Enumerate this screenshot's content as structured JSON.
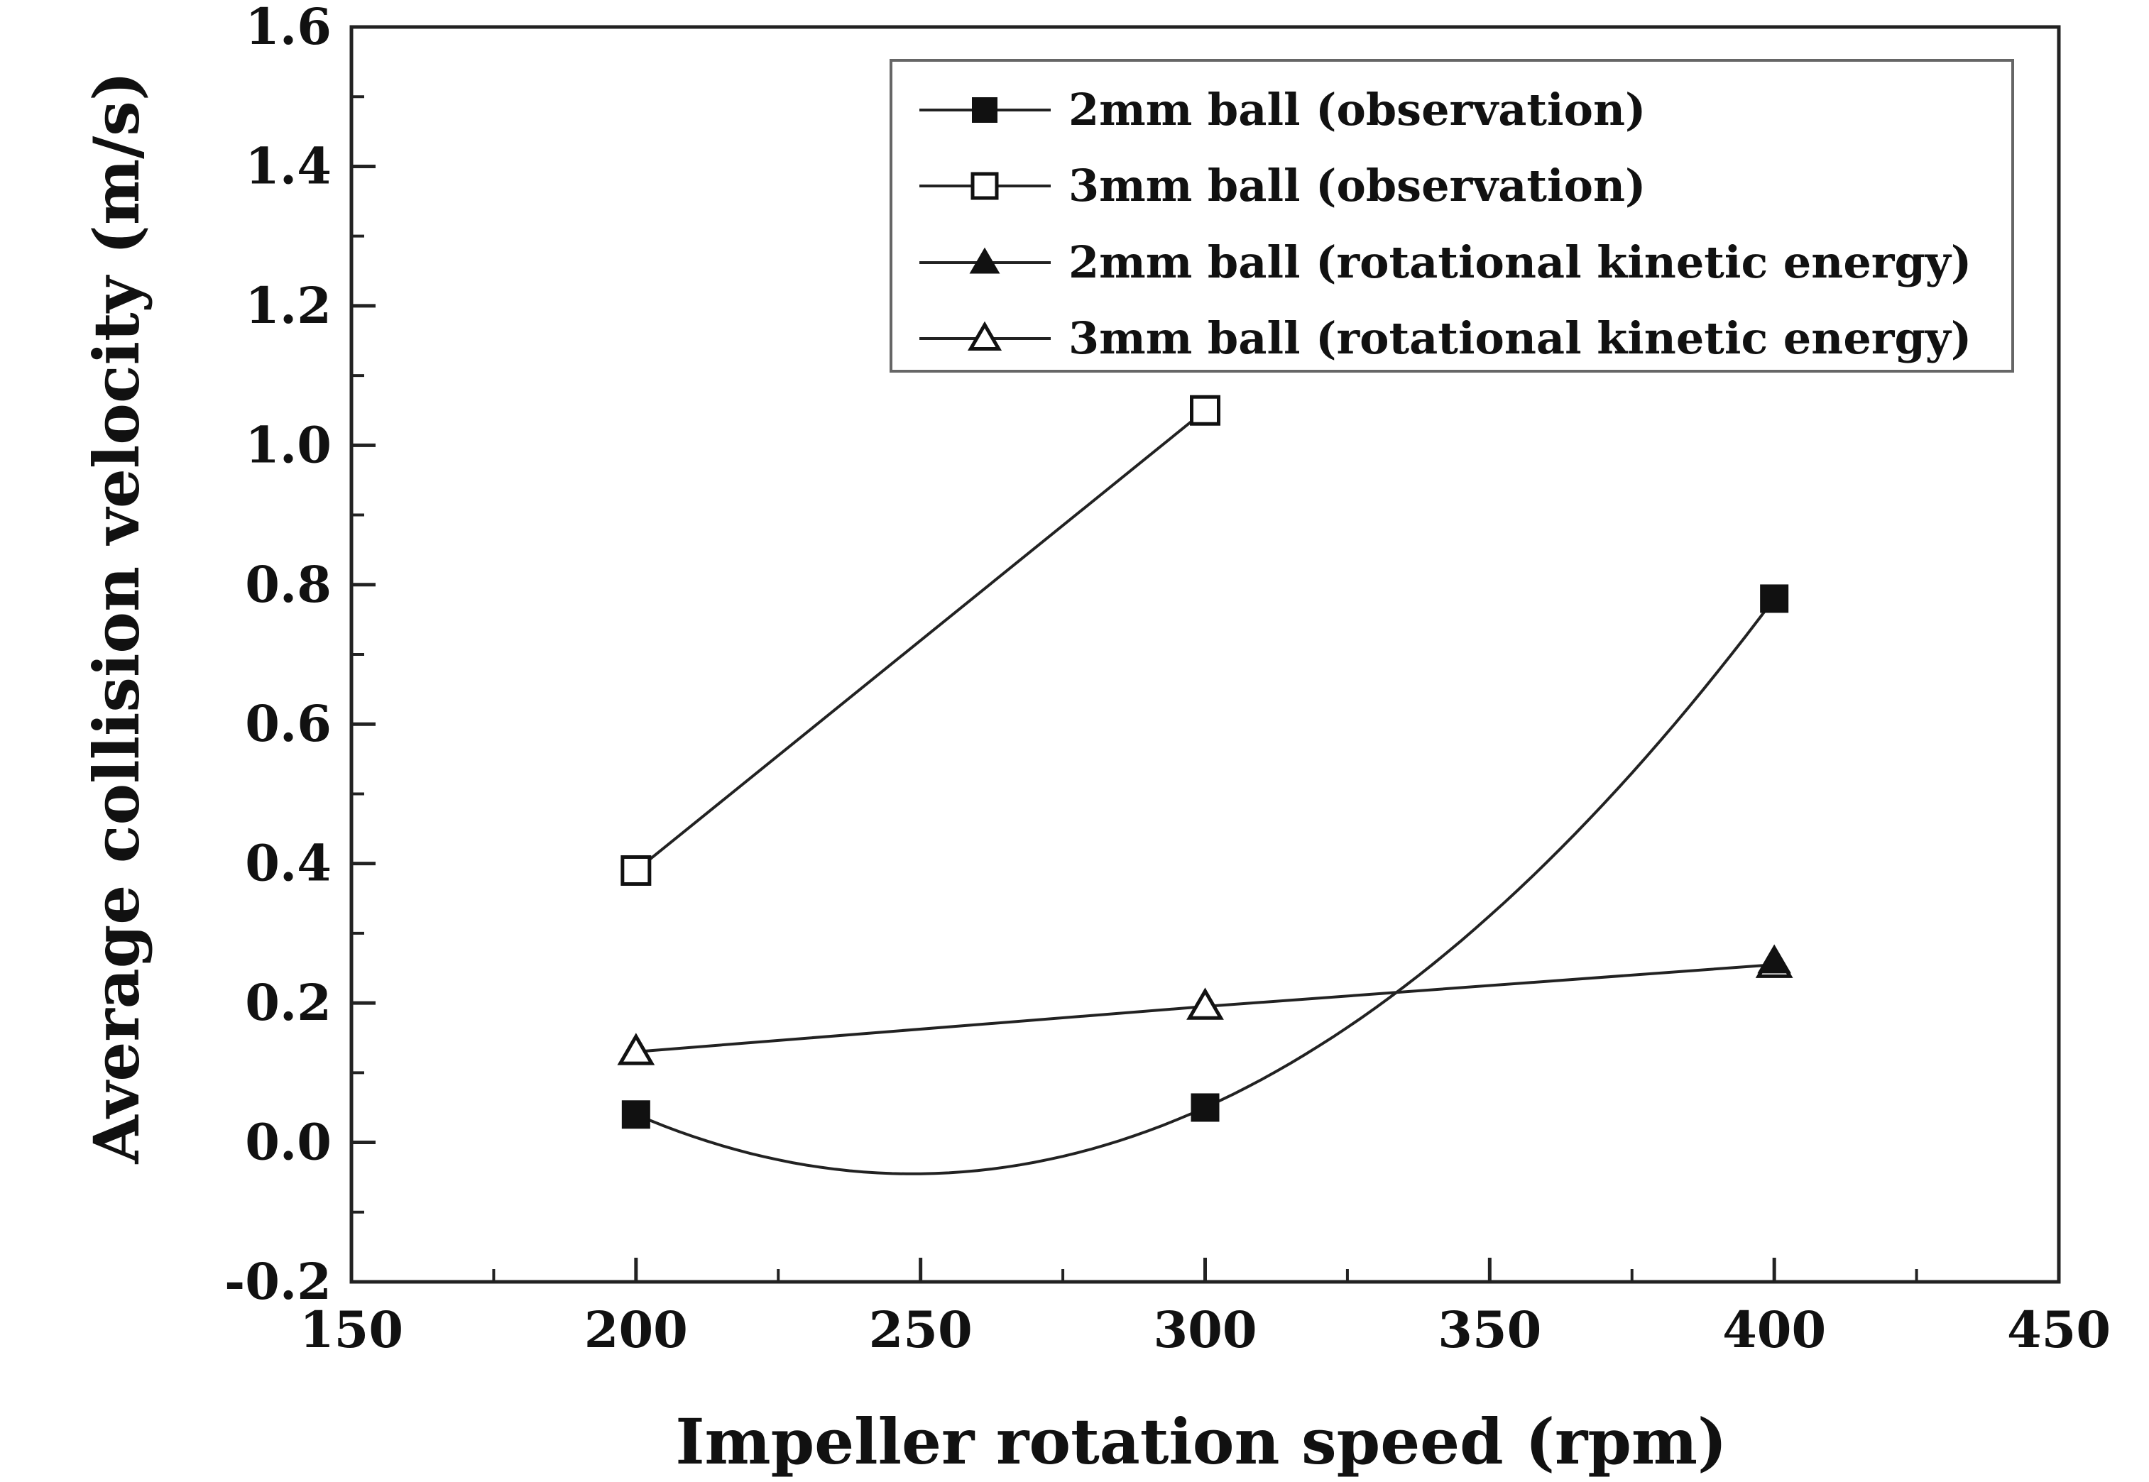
{
  "chart_data": {
    "type": "line",
    "title": "",
    "xlabel": "Impeller rotation speed (rpm)",
    "ylabel": "Average collision velocity (m/s)",
    "xlim": [
      150,
      450
    ],
    "ylim": [
      -0.2,
      1.6
    ],
    "xticks": [
      150,
      200,
      250,
      300,
      350,
      400,
      450
    ],
    "xtick_labels": [
      "150",
      "200",
      "250",
      "300",
      "350",
      "400",
      "450"
    ],
    "yticks": [
      -0.2,
      0.0,
      0.2,
      0.4,
      0.6,
      0.8,
      1.0,
      1.2,
      1.4,
      1.6
    ],
    "ytick_labels": [
      "-0.2",
      "0.0",
      "0.2",
      "0.4",
      "0.6",
      "0.8",
      "1.0",
      "1.2",
      "1.4",
      "1.6"
    ],
    "grid": false,
    "legend_position": "top-right",
    "series": [
      {
        "name": "2mm ball (observation)",
        "marker": "square-filled",
        "line": "smooth",
        "x": [
          200,
          300,
          400
        ],
        "y": [
          0.04,
          0.05,
          0.78
        ]
      },
      {
        "name": "3mm ball (observation)",
        "marker": "square-open",
        "line": "straight",
        "x": [
          200,
          300
        ],
        "y": [
          0.39,
          1.05
        ]
      },
      {
        "name": "2mm ball (rotational kinetic energy)",
        "marker": "triangle-filled",
        "line": "straight",
        "x": [
          400
        ],
        "y": [
          0.26
        ]
      },
      {
        "name": "3mm ball (rotational kinetic energy)",
        "marker": "triangle-open",
        "line": "straight",
        "x": [
          200,
          300,
          400
        ],
        "y": [
          0.13,
          0.195,
          0.255
        ]
      }
    ],
    "colors": {
      "line": "#222222",
      "frame": "#222222",
      "text": "#111111"
    }
  }
}
